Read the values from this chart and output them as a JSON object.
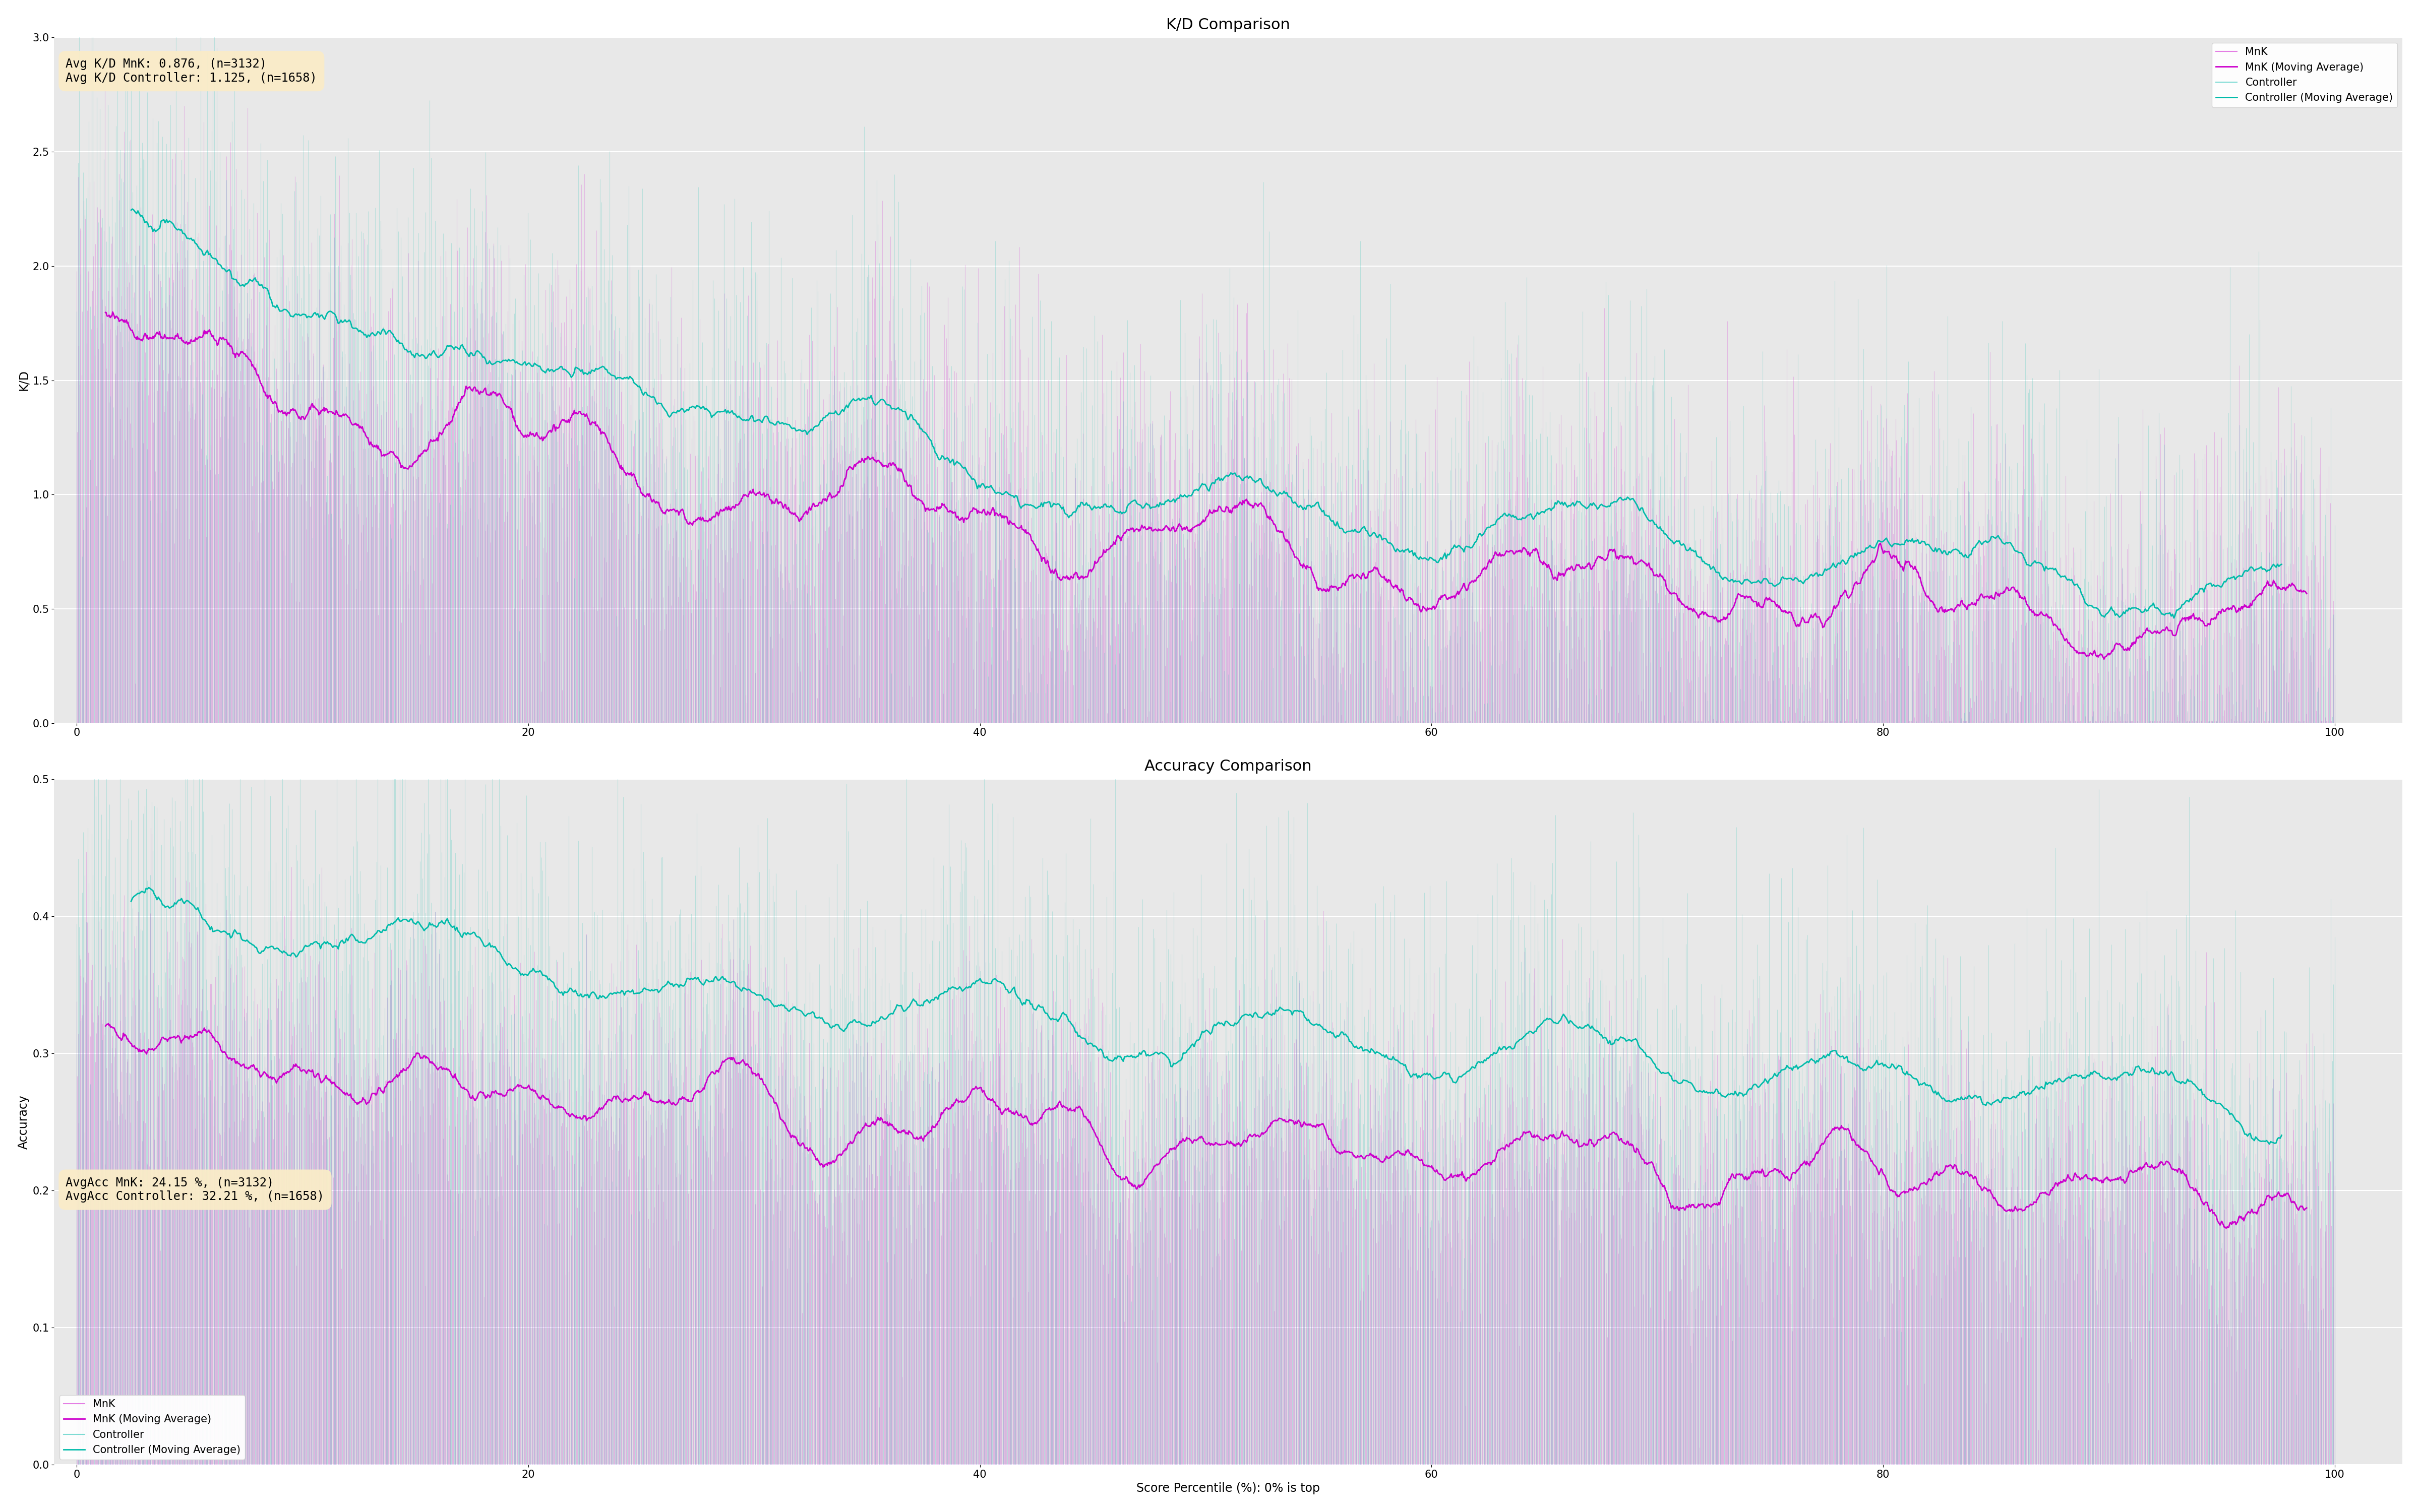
{
  "kd_title": "K/D Comparison",
  "acc_title": "Accuracy Comparison",
  "xlabel": "Score Percentile (%): 0% is top",
  "kd_ylabel": "K/D",
  "acc_ylabel": "Accuracy",
  "kd_annotation": "Avg K/D MnK: 0.876, (n=3132)\nAvg K/D Controller: 1.125, (n=1658)",
  "acc_annotation": "AvgAcc MnK: 24.15 %, (n=3132)\nAvgAcc Controller: 32.21 %, (n=1658)",
  "mnk_color": "#CC00CC",
  "controller_color": "#00BBAA",
  "background_color": "#e8e8e8",
  "annotation_bg": "#FAECC8",
  "kd_ylim": [
    0.0,
    3.0
  ],
  "acc_ylim": [
    0.0,
    0.5
  ],
  "xlim": [
    -1,
    103
  ],
  "n_mnk": 3132,
  "n_controller": 1658,
  "avg_kd_mnk": 0.876,
  "avg_kd_controller": 1.125,
  "avg_acc_mnk": 0.2415,
  "avg_acc_controller": 0.3221,
  "ma_window": 80,
  "title_fontsize": 22,
  "label_fontsize": 17,
  "tick_fontsize": 15,
  "legend_fontsize": 15,
  "annotation_fontsize": 17,
  "fig_width": 48.0,
  "fig_height": 30.0
}
